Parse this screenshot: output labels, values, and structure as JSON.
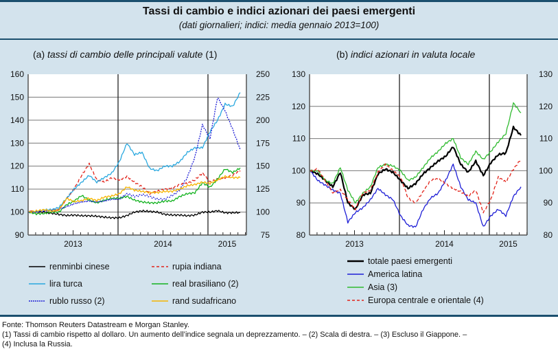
{
  "header": {
    "title": "Tassi di cambio e indici azionari dei paesi emergenti",
    "subtitle": "(dati giornalieri; indici: media gennaio 2013=100)"
  },
  "panel_a": {
    "prefix": "(a) ",
    "title": "tassi di cambio delle principali valute",
    "suffix": " (1)"
  },
  "panel_b": {
    "prefix": "(b) ",
    "title": "indici azionari in valuta locale"
  },
  "chart_data": [
    {
      "type": "line",
      "title": "(a) tassi di cambio delle principali valute (1)",
      "x_labels": [
        "2013",
        "2014",
        "2015"
      ],
      "x_range": [
        "2013-01",
        "2015-05"
      ],
      "y_left": {
        "range": [
          90,
          160
        ],
        "ticks": [
          90,
          100,
          110,
          120,
          130,
          140,
          150,
          160
        ]
      },
      "y_right": {
        "range": [
          75,
          250
        ],
        "ticks": [
          75,
          100,
          125,
          150,
          175,
          200,
          225,
          250
        ]
      },
      "grid": true,
      "legend_position": "bottom",
      "x": [
        "2013-01",
        "2013-02",
        "2013-03",
        "2013-04",
        "2013-05",
        "2013-06",
        "2013-07",
        "2013-08",
        "2013-09",
        "2013-10",
        "2013-11",
        "2013-12",
        "2014-01",
        "2014-02",
        "2014-03",
        "2014-04",
        "2014-05",
        "2014-06",
        "2014-07",
        "2014-08",
        "2014-09",
        "2014-10",
        "2014-11",
        "2014-12",
        "2015-01",
        "2015-02",
        "2015-03",
        "2015-04",
        "2015-05"
      ],
      "series": [
        {
          "name": "renminbi cinese",
          "axis": "left",
          "color": "#000000",
          "dash": "solid",
          "values": [
            100,
            100,
            100,
            99.5,
            99,
            98.5,
            98.7,
            98.4,
            98.4,
            98.2,
            97.8,
            97.5,
            97.5,
            98.5,
            100,
            100.5,
            100.3,
            100,
            99,
            98.7,
            98.7,
            98.4,
            98.7,
            100,
            100,
            100.6,
            99.7,
            99.7,
            99.8
          ]
        },
        {
          "name": "rupia indiana",
          "axis": "left",
          "color": "#e2231a",
          "dash": "dashed",
          "values": [
            100.5,
            99.5,
            99.5,
            100,
            101,
            106,
            110,
            116,
            121,
            114,
            113,
            115,
            114,
            115.5,
            113,
            111,
            108,
            109,
            110,
            110.5,
            112,
            112.5,
            114,
            117,
            113,
            114.5,
            115,
            116,
            118
          ]
        },
        {
          "name": "lira turca",
          "axis": "left",
          "color": "#29a8df",
          "dash": "solid",
          "values": [
            100,
            100,
            101,
            101,
            102,
            106,
            110,
            113,
            116,
            113,
            115,
            117,
            122,
            130,
            125,
            126,
            119,
            118,
            120,
            120,
            122,
            126,
            128,
            128,
            135,
            140,
            147,
            146,
            152
          ]
        },
        {
          "name": "real brasiliano (2)",
          "axis": "right",
          "color": "#12b21f",
          "dash": "solid",
          "values": [
            100,
            98,
            98.5,
            100,
            100,
            108,
            112,
            118,
            113,
            110,
            113,
            115,
            115,
            117,
            113,
            111,
            110,
            110,
            112,
            112,
            117,
            120,
            121,
            132,
            127,
            136,
            147,
            143,
            148
          ]
        },
        {
          "name": "rublo russo (2)",
          "axis": "right",
          "color": "#1e1ed6",
          "dash": "dotted",
          "values": [
            100,
            100.5,
            101,
            102,
            103,
            106,
            109,
            111,
            112,
            111,
            112,
            114,
            114,
            120,
            117,
            119,
            117,
            114,
            114,
            118,
            124,
            138,
            160,
            195,
            180,
            225,
            210,
            190,
            168
          ]
        },
        {
          "name": "rand sudafricano",
          "axis": "left",
          "color": "#f5b400",
          "dash": "solid",
          "values": [
            100,
            100.5,
            101,
            100.5,
            101,
            106,
            104.5,
            105,
            106,
            105,
            106.5,
            107,
            108,
            111,
            109.5,
            109,
            108.5,
            108.5,
            109,
            109,
            110,
            111.5,
            112,
            113,
            112.5,
            114,
            115.5,
            115,
            115
          ]
        }
      ]
    },
    {
      "type": "line",
      "title": "(b) indici azionari in valuta locale",
      "x_labels": [
        "2013",
        "2014",
        "2015"
      ],
      "x_range": [
        "2013-01",
        "2015-05"
      ],
      "y_left": {
        "range": [
          80,
          130
        ],
        "ticks": [
          80,
          90,
          100,
          110,
          120,
          130
        ]
      },
      "y_right": {
        "range": [
          80,
          130
        ],
        "ticks": [
          80,
          90,
          100,
          110,
          120,
          130
        ]
      },
      "grid": true,
      "legend_position": "bottom",
      "x": [
        "2013-01",
        "2013-02",
        "2013-03",
        "2013-04",
        "2013-05",
        "2013-06",
        "2013-07",
        "2013-08",
        "2013-09",
        "2013-10",
        "2013-11",
        "2013-12",
        "2014-01",
        "2014-02",
        "2014-03",
        "2014-04",
        "2014-05",
        "2014-06",
        "2014-07",
        "2014-08",
        "2014-09",
        "2014-10",
        "2014-11",
        "2014-12",
        "2015-01",
        "2015-02",
        "2015-03",
        "2015-04",
        "2015-05"
      ],
      "series": [
        {
          "name": "totale paesi emergenti",
          "color": "#000000",
          "dash": "solid",
          "bold": true,
          "values": [
            100,
            99,
            97,
            95,
            99.5,
            90,
            88,
            92.5,
            93,
            99,
            100.5,
            99.5,
            97,
            94.5,
            96,
            99,
            101,
            103,
            104.5,
            107.5,
            102,
            99.5,
            103,
            98.5,
            102.5,
            105,
            105.5,
            113.5,
            111
          ]
        },
        {
          "name": "America latina",
          "color": "#1e1ed6",
          "dash": "solid",
          "values": [
            100,
            97,
            95.5,
            94,
            93,
            84,
            87,
            88.5,
            91,
            94.5,
            92.5,
            91,
            86,
            83,
            82.5,
            88,
            91.5,
            93,
            97,
            102,
            95,
            91,
            90,
            82.5,
            86,
            88,
            86,
            92,
            95
          ]
        },
        {
          "name": "Asia (3)",
          "color": "#2fba2f",
          "dash": "solid",
          "values": [
            100,
            100,
            97,
            96,
            101,
            94,
            90,
            93,
            95,
            101,
            102,
            101.5,
            100,
            97,
            98,
            101,
            104,
            106,
            108.5,
            110,
            104,
            102,
            106,
            103.5,
            106,
            109,
            111.5,
            121,
            118
          ]
        },
        {
          "name": "Europa centrale e orientale (4)",
          "color": "#e2231a",
          "dash": "dashed",
          "values": [
            100,
            100.5,
            97,
            93,
            94,
            91,
            88,
            93,
            94,
            99.5,
            102,
            100,
            98,
            91.5,
            90,
            93.5,
            97,
            97.5,
            96,
            94.5,
            93.5,
            92,
            94,
            87,
            91,
            98,
            96.5,
            100.5,
            103.5
          ]
        }
      ]
    }
  ],
  "legend_a": [
    {
      "label": "renminbi cinese",
      "color": "#000000",
      "dash": "solid"
    },
    {
      "label": "rupia indiana",
      "color": "#e2231a",
      "dash": "dashed"
    },
    {
      "label": "lira turca",
      "color": "#29a8df",
      "dash": "solid"
    },
    {
      "label": "real brasiliano (2)",
      "color": "#12b21f",
      "dash": "solid"
    },
    {
      "label": "rublo russo (2)",
      "color": "#1e1ed6",
      "dash": "dotted"
    },
    {
      "label": "rand sudafricano",
      "color": "#f5b400",
      "dash": "solid"
    }
  ],
  "legend_b": [
    {
      "label": "totale paesi emergenti",
      "color": "#000000",
      "dash": "solid"
    },
    {
      "label": "America latina",
      "color": "#1e1ed6",
      "dash": "solid"
    },
    {
      "label": "Asia (3)",
      "color": "#2fba2f",
      "dash": "solid"
    },
    {
      "label": "Europa centrale e orientale (4)",
      "color": "#e2231a",
      "dash": "dashed"
    }
  ],
  "footer": {
    "source": "Fonte: Thomson Reuters Datastream e Morgan Stanley.",
    "note_line1": "(1) Tassi di cambio rispetto al dollaro. Un aumento dell’indice segnala un deprezzamento. – (2) Scala di destra. – (3) Escluso il Giappone. –",
    "note_line2": "(4) Inclusa la Russia."
  }
}
